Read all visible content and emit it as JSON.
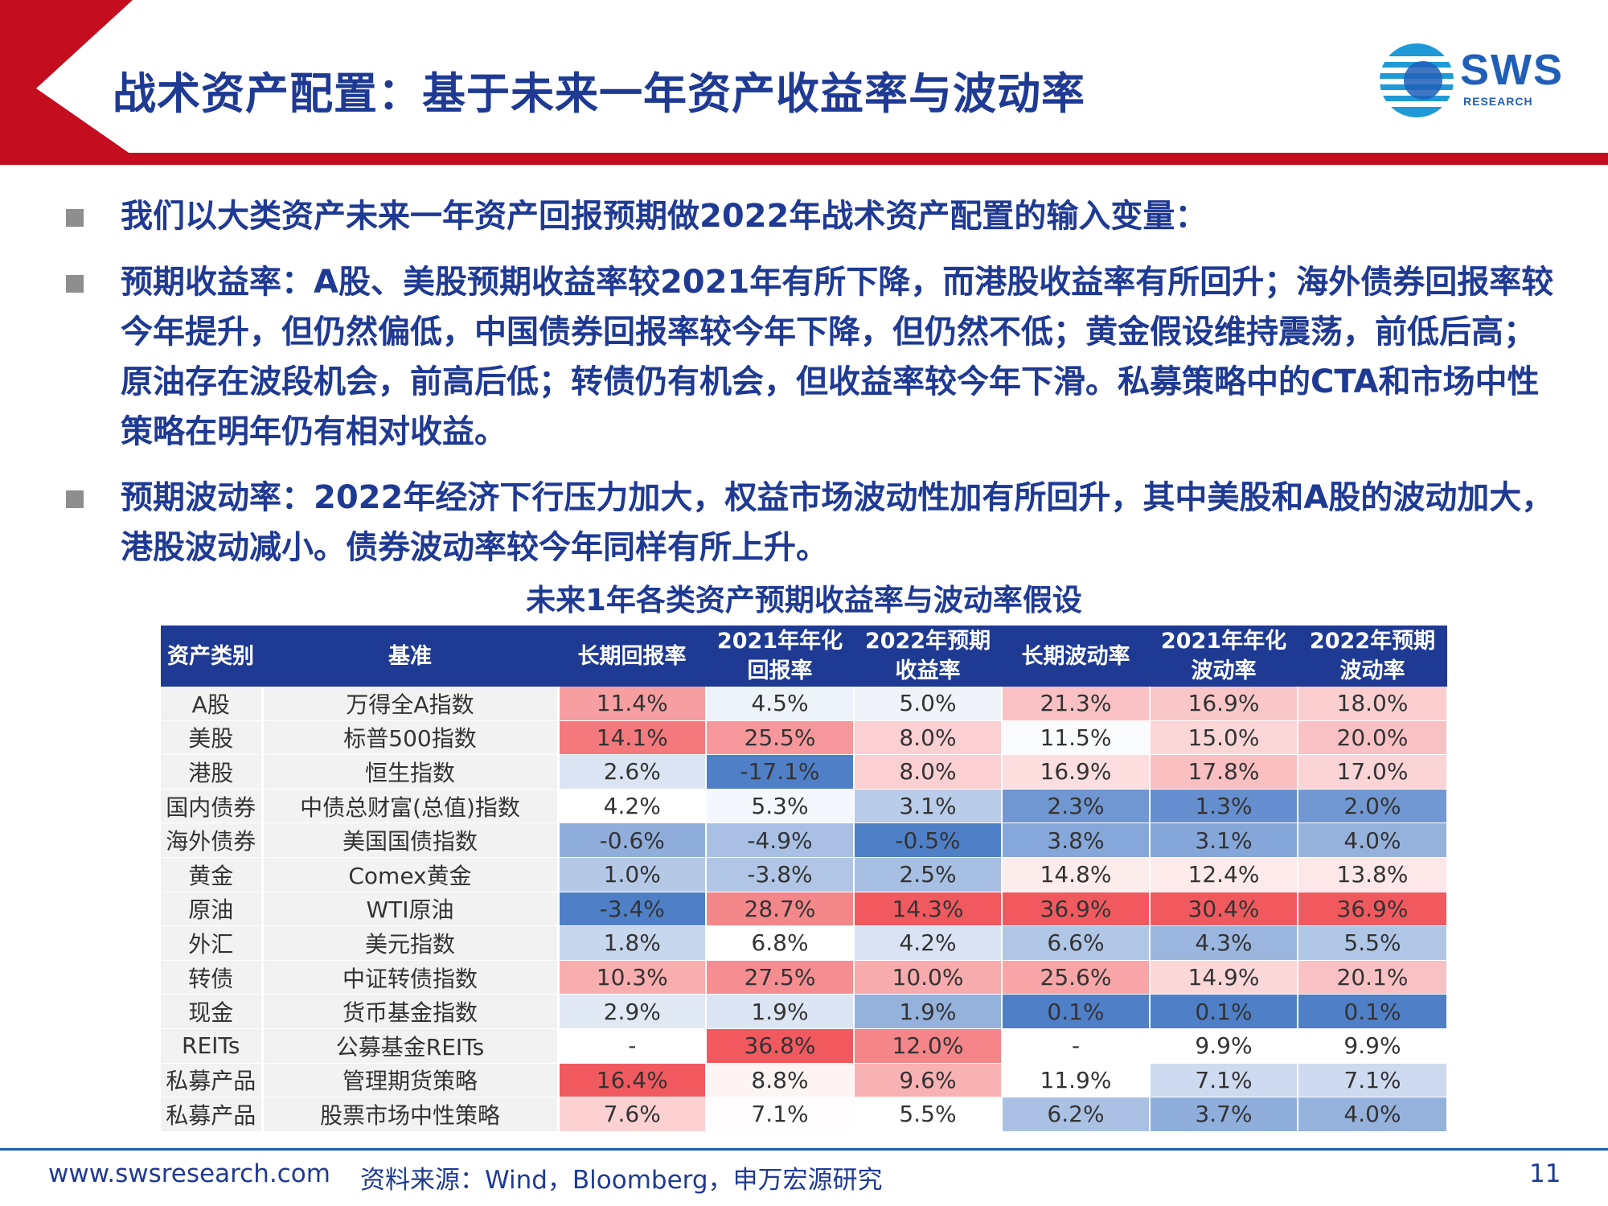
{
  "header": {
    "title": "战术资产配置：基于未来一年资产收益率与波动率",
    "logo_text": "SWS",
    "logo_sub": "RESEARCH"
  },
  "bullets": [
    {
      "text": "我们以大类资产未来一年资产回报预期做2022年战术资产配置的输入变量："
    },
    {
      "text": "预期收益率：A股、美股预期收益率较2021年有所下降，而港股收益率有所回升；海外债券回报率较今年提升，但仍然偏低，中国债券回报率较今年下降，但仍然不低；黄金假设维持震荡，前低后高；原油存在波段机会，前高后低；转债仍有机会，但收益率较今年下滑。私募策略中的CTA和市场中性策略在明年仍有相对收益。"
    },
    {
      "text": "预期波动率：2022年经济下行压力加大，权益市场波动性加有所回升，其中美股和A股的波动加大，港股波动减小。债券波动率较今年同样有所上升。"
    }
  ],
  "table": {
    "title": "未来1年各类资产预期收益率与波动率假设",
    "headers": [
      "资产类别",
      "基准",
      "长期回报率",
      "2021年年化回报率",
      "2022年预期收益率",
      "长期波动率",
      "2021年年化波动率",
      "2022年预期波动率"
    ],
    "colors": {
      "header_bg": "#1f3a93",
      "label_bg": "#f2f2f2",
      "high": "#f05a5f",
      "mid": "#ffffff",
      "low": "#4f7fc7"
    },
    "rows": [
      {
        "category": "A股",
        "benchmark": "万得全A指数",
        "values": [
          "11.4%",
          "4.5%",
          "5.0%",
          "21.3%",
          "16.9%",
          "18.0%"
        ]
      },
      {
        "category": "美股",
        "benchmark": "标普500指数",
        "values": [
          "14.1%",
          "25.5%",
          "8.0%",
          "11.5%",
          "15.0%",
          "20.0%"
        ]
      },
      {
        "category": "港股",
        "benchmark": "恒生指数",
        "values": [
          "2.6%",
          "-17.1%",
          "8.0%",
          "16.9%",
          "17.8%",
          "17.0%"
        ]
      },
      {
        "category": "国内债券",
        "benchmark": "中债总财富(总值)指数",
        "values": [
          "4.2%",
          "5.3%",
          "3.1%",
          "2.3%",
          "1.3%",
          "2.0%"
        ]
      },
      {
        "category": "海外债券",
        "benchmark": "美国国债指数",
        "values": [
          "-0.6%",
          "-4.9%",
          "-0.5%",
          "3.8%",
          "3.1%",
          "4.0%"
        ]
      },
      {
        "category": "黄金",
        "benchmark": "Comex黄金",
        "values": [
          "1.0%",
          "-3.8%",
          "2.5%",
          "14.8%",
          "12.4%",
          "13.8%"
        ]
      },
      {
        "category": "原油",
        "benchmark": "WTI原油",
        "values": [
          "-3.4%",
          "28.7%",
          "14.3%",
          "36.9%",
          "30.4%",
          "36.9%"
        ]
      },
      {
        "category": "外汇",
        "benchmark": "美元指数",
        "values": [
          "1.8%",
          "6.8%",
          "4.2%",
          "6.6%",
          "4.3%",
          "5.5%"
        ]
      },
      {
        "category": "转债",
        "benchmark": "中证转债指数",
        "values": [
          "10.3%",
          "27.5%",
          "10.0%",
          "25.6%",
          "14.9%",
          "20.1%"
        ]
      },
      {
        "category": "现金",
        "benchmark": "货币基金指数",
        "values": [
          "2.9%",
          "1.9%",
          "1.9%",
          "0.1%",
          "0.1%",
          "0.1%"
        ]
      },
      {
        "category": "REITs",
        "benchmark": "公募基金REITs",
        "values": [
          "-",
          "36.8%",
          "12.0%",
          "-",
          "9.9%",
          "9.9%"
        ]
      },
      {
        "category": "私募产品",
        "benchmark": "管理期货策略",
        "values": [
          "16.4%",
          "8.8%",
          "9.6%",
          "11.9%",
          "7.1%",
          "7.1%"
        ]
      },
      {
        "category": "私募产品",
        "benchmark": "股票市场中性策略",
        "values": [
          "7.6%",
          "7.1%",
          "5.5%",
          "6.2%",
          "3.7%",
          "4.0%"
        ]
      }
    ]
  },
  "footer": {
    "website": "www.swsresearch.com",
    "source": "资料来源：Wind，Bloomberg，申万宏源研究",
    "page": "11"
  }
}
